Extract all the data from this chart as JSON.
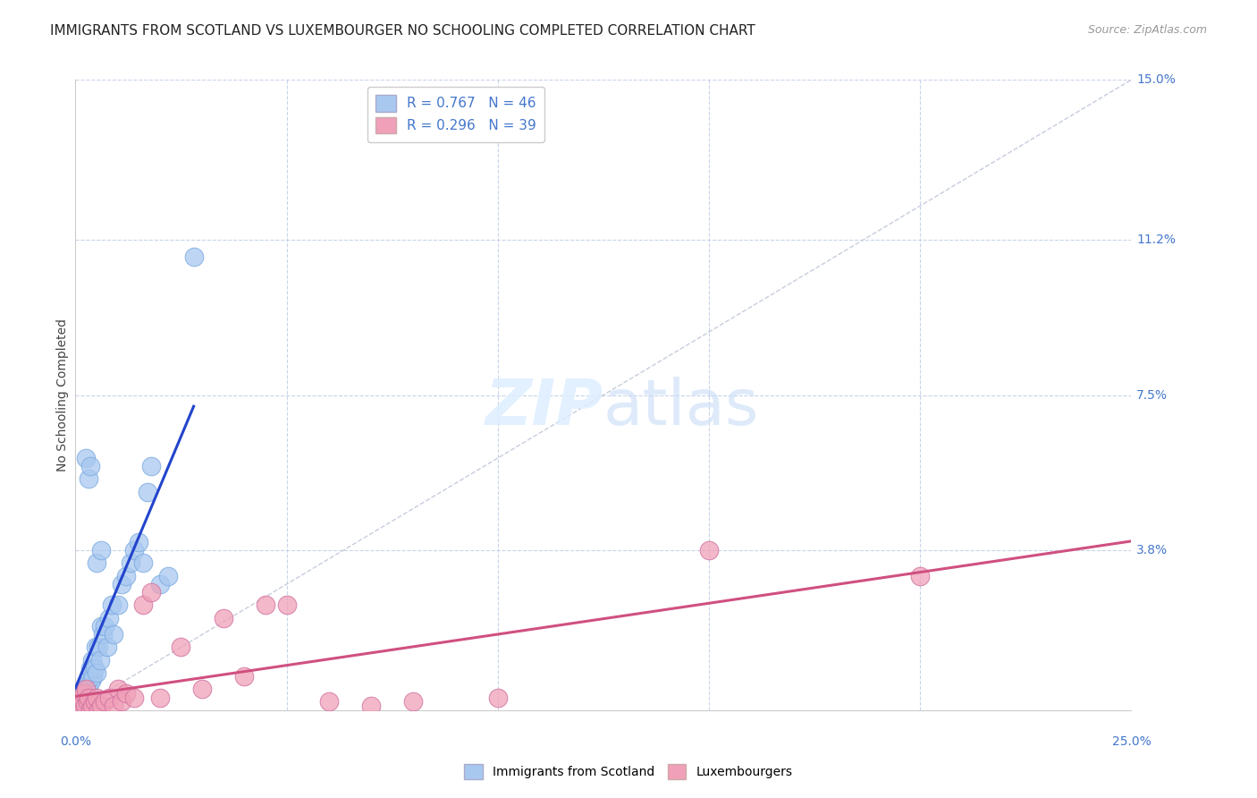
{
  "title": "IMMIGRANTS FROM SCOTLAND VS LUXEMBOURGER NO SCHOOLING COMPLETED CORRELATION CHART",
  "source": "Source: ZipAtlas.com",
  "ylabel": "No Schooling Completed",
  "xlim": [
    0.0,
    25.0
  ],
  "ylim": [
    0.0,
    15.0
  ],
  "yticks": [
    0.0,
    3.8,
    7.5,
    11.2,
    15.0
  ],
  "ytick_labels": [
    "",
    "3.8%",
    "7.5%",
    "11.2%",
    "15.0%"
  ],
  "xtick_vals": [
    0.0,
    25.0
  ],
  "xtick_labels": [
    "0.0%",
    "25.0%"
  ],
  "series_blue": {
    "label": "Immigrants from Scotland",
    "R": 0.767,
    "N": 46,
    "color": "#a8c8f0",
    "edge_color": "#7aaae0",
    "line_color": "#2244cc",
    "x": [
      0.05,
      0.08,
      0.1,
      0.12,
      0.15,
      0.17,
      0.18,
      0.2,
      0.22,
      0.25,
      0.27,
      0.3,
      0.32,
      0.35,
      0.38,
      0.4,
      0.42,
      0.45,
      0.48,
      0.5,
      0.55,
      0.58,
      0.6,
      0.65,
      0.7,
      0.75,
      0.8,
      0.85,
      0.9,
      1.0,
      1.1,
      1.2,
      1.3,
      1.4,
      1.5,
      1.6,
      1.7,
      1.8,
      2.0,
      2.2,
      0.25,
      0.3,
      0.35,
      0.5,
      0.6,
      2.8
    ],
    "y": [
      0.1,
      0.2,
      0.3,
      0.15,
      0.25,
      0.3,
      0.2,
      0.4,
      0.3,
      0.5,
      0.6,
      0.8,
      0.5,
      1.0,
      0.7,
      1.2,
      0.8,
      1.0,
      1.5,
      0.9,
      1.5,
      1.2,
      2.0,
      1.8,
      2.0,
      1.5,
      2.2,
      2.5,
      1.8,
      2.5,
      3.0,
      3.2,
      3.5,
      3.8,
      4.0,
      3.5,
      5.2,
      5.8,
      3.0,
      3.2,
      6.0,
      5.5,
      5.8,
      3.5,
      3.8,
      10.8
    ]
  },
  "series_pink": {
    "label": "Luxembourgers",
    "R": 0.296,
    "N": 39,
    "color": "#f0a0b8",
    "edge_color": "#d070a0",
    "line_color": "#d05080",
    "x": [
      0.05,
      0.08,
      0.1,
      0.12,
      0.15,
      0.18,
      0.2,
      0.22,
      0.25,
      0.28,
      0.3,
      0.35,
      0.4,
      0.45,
      0.5,
      0.55,
      0.6,
      0.7,
      0.8,
      0.9,
      1.0,
      1.1,
      1.2,
      1.4,
      1.6,
      1.8,
      2.0,
      2.5,
      3.0,
      3.5,
      4.0,
      4.5,
      5.0,
      6.0,
      7.0,
      8.0,
      10.0,
      15.0,
      20.0
    ],
    "y": [
      0.1,
      0.2,
      0.0,
      0.3,
      0.1,
      0.2,
      0.4,
      0.1,
      0.5,
      0.2,
      0.3,
      0.0,
      0.1,
      0.2,
      0.3,
      0.0,
      0.1,
      0.2,
      0.3,
      0.1,
      0.5,
      0.2,
      0.4,
      0.3,
      2.5,
      2.8,
      0.3,
      1.5,
      0.5,
      2.2,
      0.8,
      2.5,
      2.5,
      0.2,
      0.1,
      0.2,
      0.3,
      3.8,
      3.2
    ]
  },
  "background_color": "#ffffff",
  "grid_color": "#c8d4e8",
  "title_fontsize": 11,
  "legend_fontsize": 11,
  "source_color": "#999999",
  "value_color": "#4477cc",
  "watermark_color": "#ddeeff",
  "diag_color": "#c0c8d8"
}
